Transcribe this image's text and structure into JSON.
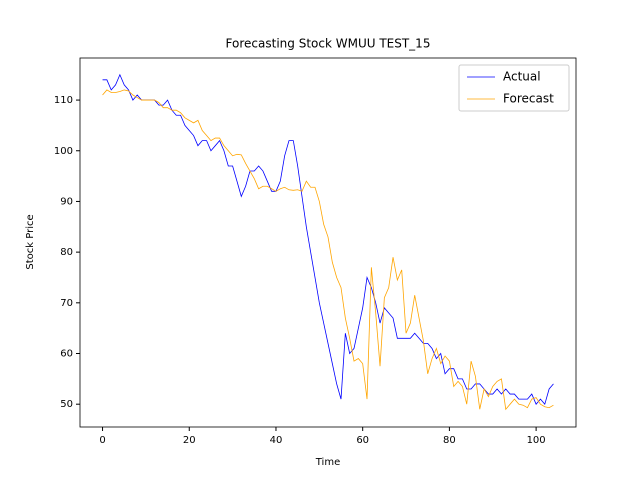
{
  "chart_data": {
    "type": "line",
    "title": "Forecasting Stock WMUU TEST_15",
    "x_label": "Time",
    "y_label": "Stock Price",
    "x": [
      0,
      1,
      2,
      3,
      4,
      5,
      6,
      7,
      8,
      9,
      10,
      11,
      12,
      13,
      14,
      15,
      16,
      17,
      18,
      19,
      20,
      21,
      22,
      23,
      24,
      25,
      26,
      27,
      28,
      29,
      30,
      31,
      32,
      33,
      34,
      35,
      36,
      37,
      38,
      39,
      40,
      41,
      42,
      43,
      44,
      45,
      46,
      47,
      48,
      49,
      50,
      51,
      52,
      53,
      54,
      55,
      56,
      57,
      58,
      59,
      60,
      61,
      62,
      63,
      64,
      65,
      66,
      67,
      68,
      69,
      70,
      71,
      72,
      73,
      74,
      75,
      76,
      77,
      78,
      79,
      80,
      81,
      82,
      83,
      84,
      85,
      86,
      87,
      88,
      89,
      90,
      91,
      92,
      93,
      94,
      95,
      96,
      97,
      98,
      99,
      100,
      101,
      102,
      103,
      104
    ],
    "series": [
      {
        "name": "Actual",
        "color": "#0000ff",
        "values": [
          114,
          114,
          112,
          113,
          115,
          113,
          112,
          110,
          111,
          110,
          110,
          110,
          110,
          109,
          109,
          110,
          108,
          107,
          107,
          105,
          104,
          103,
          101,
          102,
          102,
          100,
          101,
          102,
          100,
          97,
          97,
          94,
          91,
          93,
          96,
          96,
          97,
          96,
          94,
          92,
          92,
          94,
          99,
          102,
          102,
          97,
          91,
          85,
          80,
          75,
          70,
          66,
          62,
          58,
          54,
          51,
          64,
          60,
          61,
          65,
          69,
          75,
          73,
          70,
          66,
          69,
          68,
          67,
          63,
          63,
          63,
          63,
          64,
          63,
          62,
          62,
          61,
          59,
          60,
          56,
          57,
          57,
          55,
          55,
          53,
          53,
          54,
          54,
          53,
          52,
          52,
          53,
          52,
          53,
          52,
          52,
          51,
          51,
          51,
          52,
          50,
          51,
          50,
          53,
          54
        ]
      },
      {
        "name": "Forecast",
        "color": "#ffa500",
        "values": [
          111,
          112,
          111.5,
          111.5,
          111.7,
          112,
          111.8,
          111,
          110.5,
          110,
          110,
          110,
          110,
          109.5,
          108.5,
          108.5,
          108,
          108,
          107.5,
          106.5,
          106,
          105.5,
          106,
          104,
          103,
          102,
          102.5,
          102.5,
          101,
          100,
          99,
          99.3,
          99.2,
          97.5,
          96,
          94.5,
          92.5,
          93,
          93,
          92.5,
          92,
          92.5,
          92.8,
          92.3,
          92.2,
          92.3,
          92,
          94,
          92.8,
          92.8,
          90,
          85.5,
          83,
          78,
          75,
          73,
          67,
          63,
          58.5,
          59,
          58,
          51,
          77,
          68,
          57.5,
          71,
          73,
          79,
          74.5,
          76.5,
          64,
          66,
          71.5,
          67,
          62.5,
          56,
          59,
          61,
          58,
          59.5,
          58.5,
          53.5,
          54.5,
          53.5,
          50,
          58.5,
          55.5,
          49,
          53,
          51.5,
          53.5,
          54.5,
          55,
          49,
          50,
          51,
          50,
          49.8,
          49.3,
          51,
          51.3,
          50,
          49.5,
          49.3,
          49.8
        ]
      }
    ],
    "xlim": [
      -5.2,
      109.2
    ],
    "ylim": [
      45.5,
      118.3
    ],
    "xticks": [
      0,
      20,
      40,
      60,
      80,
      100
    ],
    "yticks": [
      50,
      60,
      70,
      80,
      90,
      100,
      110
    ],
    "legend": "upper right"
  }
}
